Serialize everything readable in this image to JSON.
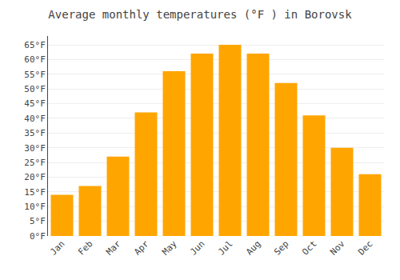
{
  "chart_data": {
    "type": "bar",
    "title": "Average monthly temperatures (°F ) in Borovsk",
    "categories": [
      "Jan",
      "Feb",
      "Mar",
      "Apr",
      "May",
      "Jun",
      "Jul",
      "Aug",
      "Sep",
      "Oct",
      "Nov",
      "Dec"
    ],
    "values": [
      14,
      17,
      27,
      42,
      56,
      62,
      65,
      62,
      52,
      41,
      30,
      21
    ],
    "color": "#FFA500",
    "ylim": [
      0,
      68
    ],
    "yticks": [
      {
        "value": 0,
        "label": "0°F"
      },
      {
        "value": 5,
        "label": "5°F"
      },
      {
        "value": 10,
        "label": "10°F"
      },
      {
        "value": 15,
        "label": "15°F"
      },
      {
        "value": 20,
        "label": "20°F"
      },
      {
        "value": 25,
        "label": "25°F"
      },
      {
        "value": 30,
        "label": "30°F"
      },
      {
        "value": 35,
        "label": "35°F"
      },
      {
        "value": 40,
        "label": "40°F"
      },
      {
        "value": 45,
        "label": "45°F"
      },
      {
        "value": 50,
        "label": "50°F"
      },
      {
        "value": 55,
        "label": "55°F"
      },
      {
        "value": 60,
        "label": "60°F"
      },
      {
        "value": 65,
        "label": "65°F"
      }
    ],
    "grid": true
  }
}
